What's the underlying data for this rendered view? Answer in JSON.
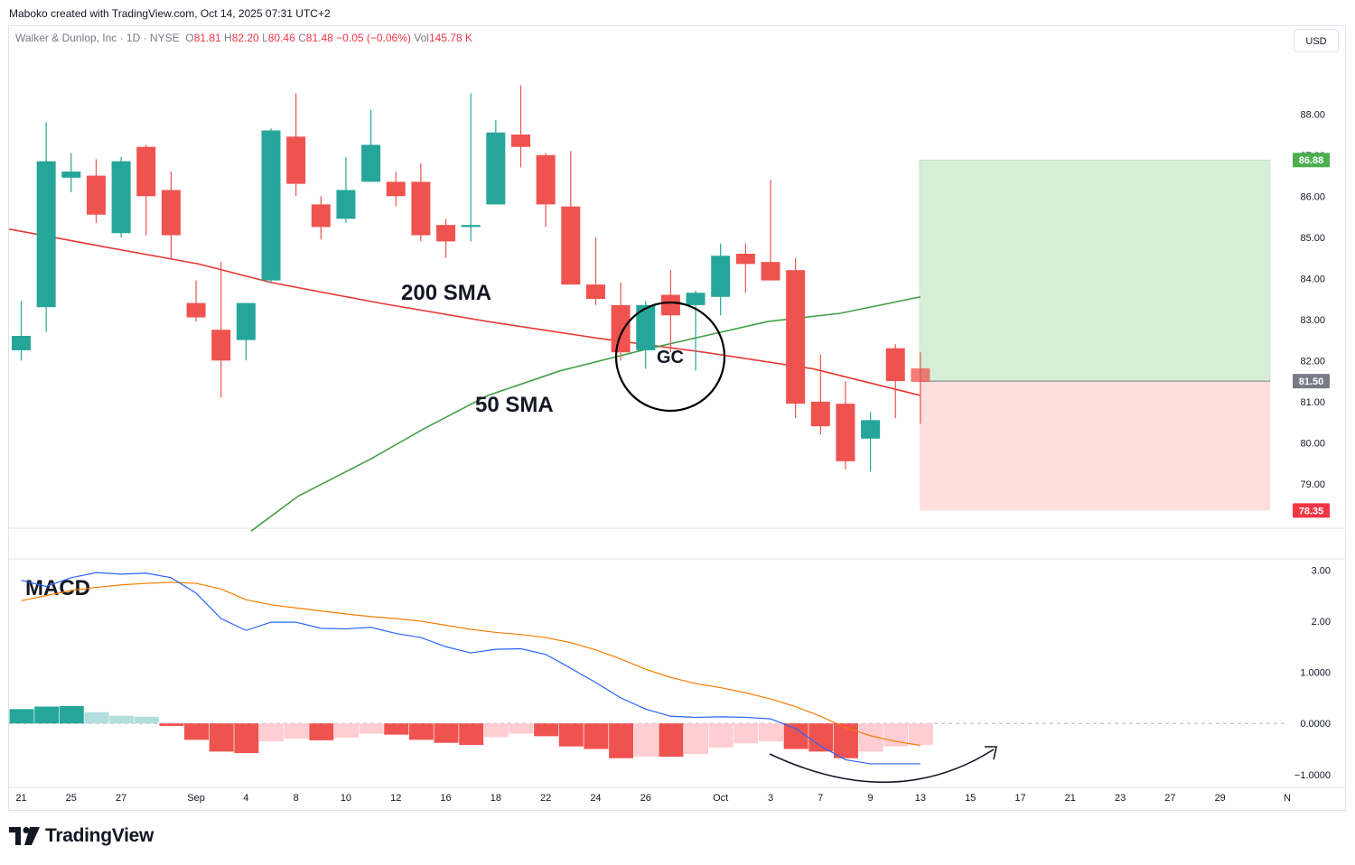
{
  "header": {
    "credit": "Maboko created with TradingView.com, Oct 14, 2025 07:31 UTC+2",
    "symbol": "Walker & Dunlop, Inc · 1D · NYSE",
    "o_label": "O",
    "o_value": "81.81",
    "h_label": "H",
    "h_value": "82.20",
    "l_label": "L",
    "l_value": "80.46",
    "c_label": "C",
    "c_value": "81.48",
    "change": "−0.05 (−0.06%)",
    "vol_label": "Vol",
    "vol_value": "145.78 K"
  },
  "currency_button": "USD",
  "brand": {
    "name": "TradingView",
    "logo": "tradingview-logo-icon"
  },
  "colors": {
    "up": "#26a69a",
    "down": "#ef5350",
    "sma200": "#e53935",
    "sma50": "#43a047",
    "macd": "#2962ff",
    "signal": "#f57c00",
    "hist_up_strong": "#26a69a",
    "hist_up_weak": "#b2dfdb",
    "hist_down_strong": "#ef5350",
    "hist_down_weak": "#ffcdd2",
    "target_zone": "#d4efd5",
    "stop_zone": "#fde0dd",
    "price_tag": "#f23645",
    "target_tag": "#4caf50",
    "entry_tag": "#787b86"
  },
  "chart_data": [
    {
      "type": "candlestick",
      "title": "Walker & Dunlop, Inc · 1D · NYSE",
      "y_ticks": [
        "79.00",
        "80.00",
        "81.00",
        "82.00",
        "83.00",
        "84.00",
        "85.00",
        "86.00",
        "87.00",
        "88.00"
      ],
      "y_range": [
        77.92,
        89.5
      ],
      "x_ticks": [
        "21",
        "25",
        "27",
        "Sep",
        "4",
        "8",
        "10",
        "12",
        "16",
        "18",
        "22",
        "24",
        "26",
        "Oct",
        "3",
        "7",
        "9",
        "13",
        "15",
        "17",
        "21",
        "23",
        "27",
        "29",
        "N"
      ],
      "candles": [
        {
          "date": "Aug 21",
          "open": 82.25,
          "high": 83.45,
          "low": 82.0,
          "close": 82.6
        },
        {
          "date": "Aug 22",
          "open": 83.3,
          "high": 87.8,
          "low": 82.7,
          "close": 86.85
        },
        {
          "date": "Aug 25",
          "open": 86.45,
          "high": 87.05,
          "low": 86.1,
          "close": 86.6
        },
        {
          "date": "Aug 26",
          "open": 86.5,
          "high": 86.9,
          "low": 85.35,
          "close": 85.55
        },
        {
          "date": "Aug 27",
          "open": 85.1,
          "high": 86.95,
          "low": 85.0,
          "close": 86.85
        },
        {
          "date": "Aug 28",
          "open": 87.2,
          "high": 87.25,
          "low": 85.05,
          "close": 86.0
        },
        {
          "date": "Aug 29",
          "open": 86.15,
          "high": 86.6,
          "low": 84.45,
          "close": 85.05
        },
        {
          "date": "Sep 2",
          "open": 83.4,
          "high": 83.95,
          "low": 82.95,
          "close": 83.05
        },
        {
          "date": "Sep 3",
          "open": 82.75,
          "high": 84.4,
          "low": 81.1,
          "close": 82.0
        },
        {
          "date": "Sep 4",
          "open": 82.5,
          "high": 83.4,
          "low": 82.0,
          "close": 83.4
        },
        {
          "date": "Sep 5",
          "open": 83.95,
          "high": 87.65,
          "low": 83.9,
          "close": 87.6
        },
        {
          "date": "Sep 8",
          "open": 87.45,
          "high": 88.5,
          "low": 86.0,
          "close": 86.3
        },
        {
          "date": "Sep 9",
          "open": 85.8,
          "high": 86.0,
          "low": 84.95,
          "close": 85.25
        },
        {
          "date": "Sep 10",
          "open": 85.45,
          "high": 86.95,
          "low": 85.35,
          "close": 86.15
        },
        {
          "date": "Sep 11",
          "open": 86.35,
          "high": 88.1,
          "low": 86.35,
          "close": 87.25
        },
        {
          "date": "Sep 12",
          "open": 86.35,
          "high": 86.6,
          "low": 85.75,
          "close": 86.0
        },
        {
          "date": "Sep 15",
          "open": 86.35,
          "high": 86.8,
          "low": 84.9,
          "close": 85.05
        },
        {
          "date": "Sep 16",
          "open": 85.3,
          "high": 85.45,
          "low": 84.5,
          "close": 84.9
        },
        {
          "date": "Sep 17",
          "open": 85.25,
          "high": 88.5,
          "low": 84.9,
          "close": 85.3
        },
        {
          "date": "Sep 18",
          "open": 85.8,
          "high": 87.85,
          "low": 85.8,
          "close": 87.55
        },
        {
          "date": "Sep 19",
          "open": 87.5,
          "high": 88.7,
          "low": 86.7,
          "close": 87.2
        },
        {
          "date": "Sep 22",
          "open": 87.0,
          "high": 87.05,
          "low": 85.25,
          "close": 85.8
        },
        {
          "date": "Sep 23",
          "open": 85.75,
          "high": 87.1,
          "low": 83.85,
          "close": 83.85
        },
        {
          "date": "Sep 24",
          "open": 83.85,
          "high": 85.0,
          "low": 83.35,
          "close": 83.5
        },
        {
          "date": "Sep 25",
          "open": 83.35,
          "high": 83.9,
          "low": 82.0,
          "close": 82.2
        },
        {
          "date": "Sep 26",
          "open": 82.25,
          "high": 83.45,
          "low": 81.8,
          "close": 83.35
        },
        {
          "date": "Sep 29",
          "open": 83.6,
          "high": 84.2,
          "low": 82.2,
          "close": 83.1
        },
        {
          "date": "Sep 30",
          "open": 83.35,
          "high": 83.7,
          "low": 81.75,
          "close": 83.65
        },
        {
          "date": "Oct 1",
          "open": 83.55,
          "high": 84.85,
          "low": 83.1,
          "close": 84.55
        },
        {
          "date": "Oct 2",
          "open": 84.6,
          "high": 84.85,
          "low": 83.65,
          "close": 84.35
        },
        {
          "date": "Oct 3",
          "open": 84.4,
          "high": 86.4,
          "low": 83.95,
          "close": 83.95
        },
        {
          "date": "Oct 6",
          "open": 84.2,
          "high": 84.5,
          "low": 80.6,
          "close": 80.95
        },
        {
          "date": "Oct 7",
          "open": 81.0,
          "high": 82.15,
          "low": 80.2,
          "close": 80.4
        },
        {
          "date": "Oct 8",
          "open": 80.95,
          "high": 81.5,
          "low": 79.35,
          "close": 79.55
        },
        {
          "date": "Oct 9",
          "open": 80.1,
          "high": 80.75,
          "low": 79.3,
          "close": 80.55
        },
        {
          "date": "Oct 10",
          "open": 82.3,
          "high": 82.4,
          "low": 80.6,
          "close": 81.5
        },
        {
          "date": "Oct 13",
          "open": 81.81,
          "high": 82.2,
          "low": 80.46,
          "close": 81.48
        }
      ],
      "series": [
        {
          "name": "200 SMA",
          "values": [
            85.2,
            84.75,
            84.35,
            83.9,
            83.4,
            82.95,
            82.55,
            82.2,
            81.8,
            81.15
          ]
        },
        {
          "name": "50 SMA",
          "values": [
            77.85,
            78.7,
            79.6,
            80.35,
            81.15,
            81.75,
            82.3,
            82.95,
            83.15,
            83.55
          ]
        }
      ],
      "annotations": [
        "200 SMA",
        "50 SMA",
        "GC"
      ],
      "position_tool": {
        "target": 86.88,
        "entry": 81.5,
        "stop": 78.35
      },
      "labels": {
        "target": "86.88",
        "entry": "81.50",
        "stop": "78.35"
      }
    },
    {
      "type": "macd",
      "title": "MACD",
      "y_ticks": [
        "3.00",
        "2.00",
        "1.0000",
        "0.0000",
        "−1.0000"
      ],
      "y_range": [
        -1.25,
        3.2
      ],
      "macd": [
        2.8,
        2.68,
        2.85,
        2.95,
        2.92,
        2.94,
        2.85,
        2.55,
        2.05,
        1.82,
        1.98,
        1.98,
        1.86,
        1.85,
        1.88,
        1.76,
        1.68,
        1.5,
        1.38,
        1.45,
        1.46,
        1.35,
        1.08,
        0.8,
        0.5,
        0.28,
        0.14,
        0.12,
        0.13,
        0.12,
        0.09,
        -0.1,
        -0.44,
        -0.71,
        -0.79,
        -0.79,
        -0.79
      ],
      "signal": [
        2.4,
        2.5,
        2.6,
        2.66,
        2.71,
        2.74,
        2.76,
        2.74,
        2.63,
        2.42,
        2.32,
        2.26,
        2.2,
        2.14,
        2.09,
        2.05,
        2.0,
        1.92,
        1.84,
        1.78,
        1.74,
        1.68,
        1.58,
        1.44,
        1.26,
        1.06,
        0.9,
        0.78,
        0.7,
        0.6,
        0.48,
        0.33,
        0.14,
        -0.08,
        -0.24,
        -0.35,
        -0.43
      ],
      "histogram": [
        0.28,
        0.33,
        0.34,
        0.22,
        0.15,
        0.13,
        -0.05,
        -0.32,
        -0.55,
        -0.58,
        -0.35,
        -0.3,
        -0.33,
        -0.28,
        -0.2,
        -0.22,
        -0.32,
        -0.38,
        -0.42,
        -0.27,
        -0.2,
        -0.25,
        -0.45,
        -0.5,
        -0.68,
        -0.65,
        -0.65,
        -0.6,
        -0.47,
        -0.39,
        -0.35,
        -0.5,
        -0.55,
        -0.68,
        -0.55,
        -0.45,
        -0.42
      ]
    }
  ]
}
